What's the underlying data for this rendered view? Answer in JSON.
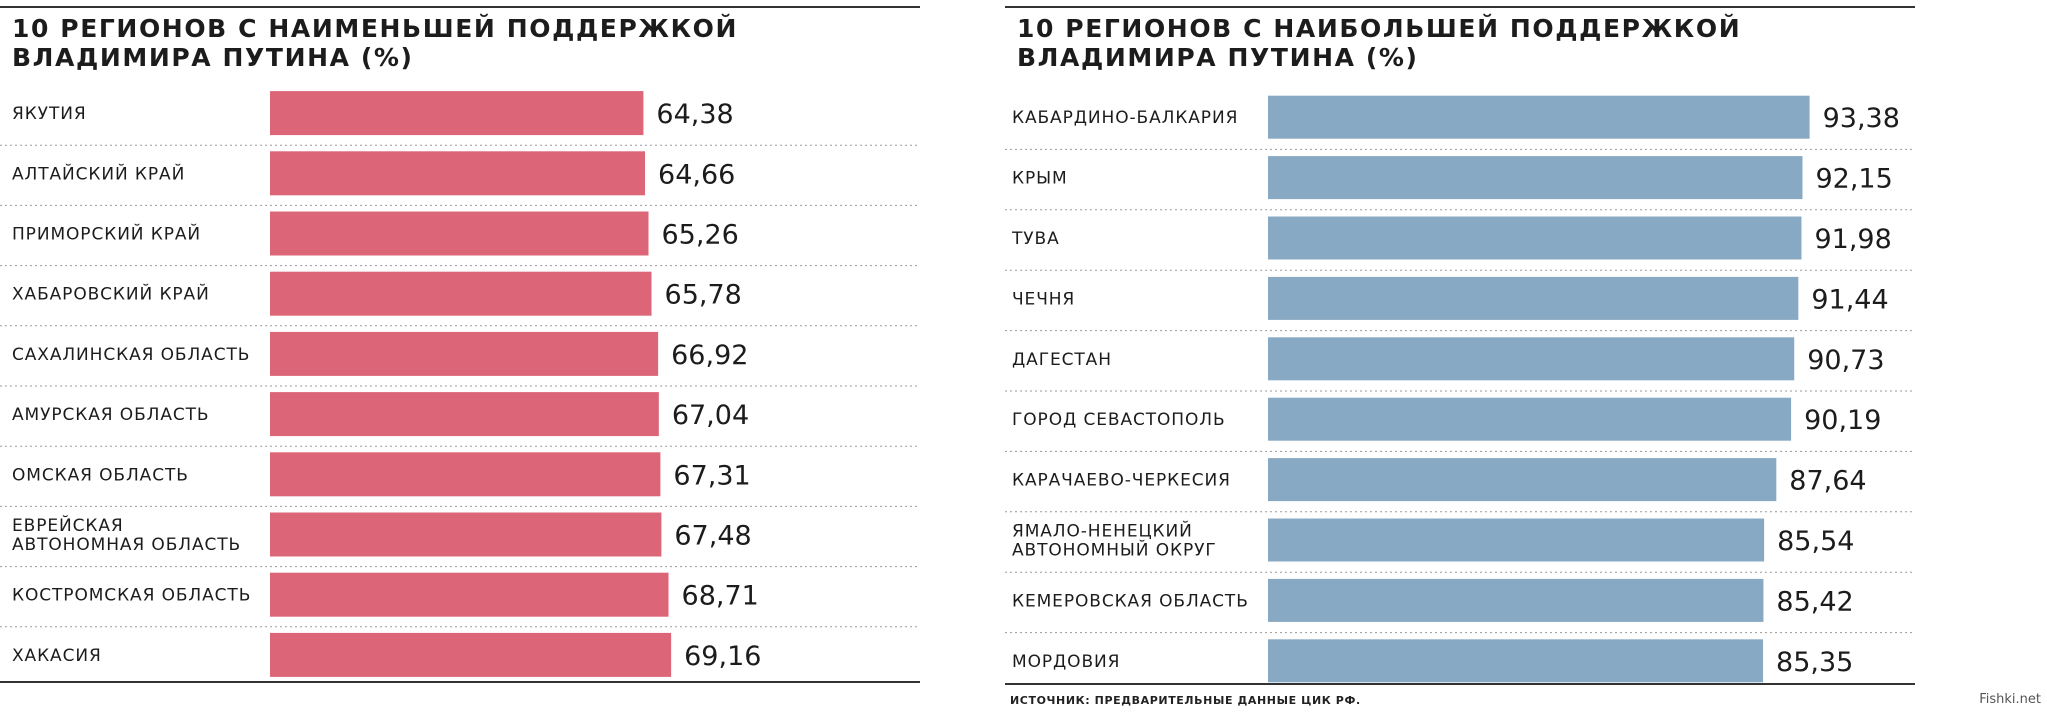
{
  "chart_data": [
    {
      "type": "bar",
      "orientation": "horizontal",
      "title": [
        "10 регионов с наименьшей поддержкой",
        "Владимира Путина (%)"
      ],
      "categories": [
        [
          "Якутия"
        ],
        [
          "Алтайский край"
        ],
        [
          "Приморский край"
        ],
        [
          "Хабаровский край"
        ],
        [
          "Сахалинская область"
        ],
        [
          "Амурская область"
        ],
        [
          "Омская область"
        ],
        [
          "Еврейская",
          "автономная область"
        ],
        [
          "Костромская область"
        ],
        [
          "Хакасия"
        ]
      ],
      "values": [
        64.38,
        64.66,
        65.26,
        65.78,
        66.92,
        67.04,
        67.31,
        67.48,
        68.71,
        69.16
      ],
      "value_labels": [
        "64,38",
        "64,66",
        "65,26",
        "65,78",
        "66,92",
        "67,04",
        "67,31",
        "67,48",
        "68,71",
        "69,16"
      ],
      "bar_color": "#dc6678",
      "grid": false
    },
    {
      "type": "bar",
      "orientation": "horizontal",
      "title": [
        "10 регионов с наибольшей поддержкой",
        "Владимира Путина (%)"
      ],
      "categories": [
        [
          "Кабардино-Балкария"
        ],
        [
          "Крым"
        ],
        [
          "Тува"
        ],
        [
          "Чечня"
        ],
        [
          "Дагестан"
        ],
        [
          "Город Севастополь"
        ],
        [
          "Карачаево-Черкесия"
        ],
        [
          "Ямало-Ненецкий",
          "автономный округ"
        ],
        [
          "Кемеровская область"
        ],
        [
          "Мордовия"
        ]
      ],
      "values": [
        93.38,
        92.15,
        91.98,
        91.44,
        90.73,
        90.19,
        87.64,
        85.54,
        85.42,
        85.35
      ],
      "value_labels": [
        "93,38",
        "92,15",
        "91,98",
        "91,44",
        "90,73",
        "90,19",
        "87,64",
        "85,54",
        "85,42",
        "85,35"
      ],
      "bar_color": "#88a9c3",
      "grid": false
    }
  ],
  "source": "ИСТОЧНИК: ПРЕДВАРИТЕЛЬНЫЕ ДАННЫЕ ЦИК РФ.",
  "watermark": "Fishki.net"
}
